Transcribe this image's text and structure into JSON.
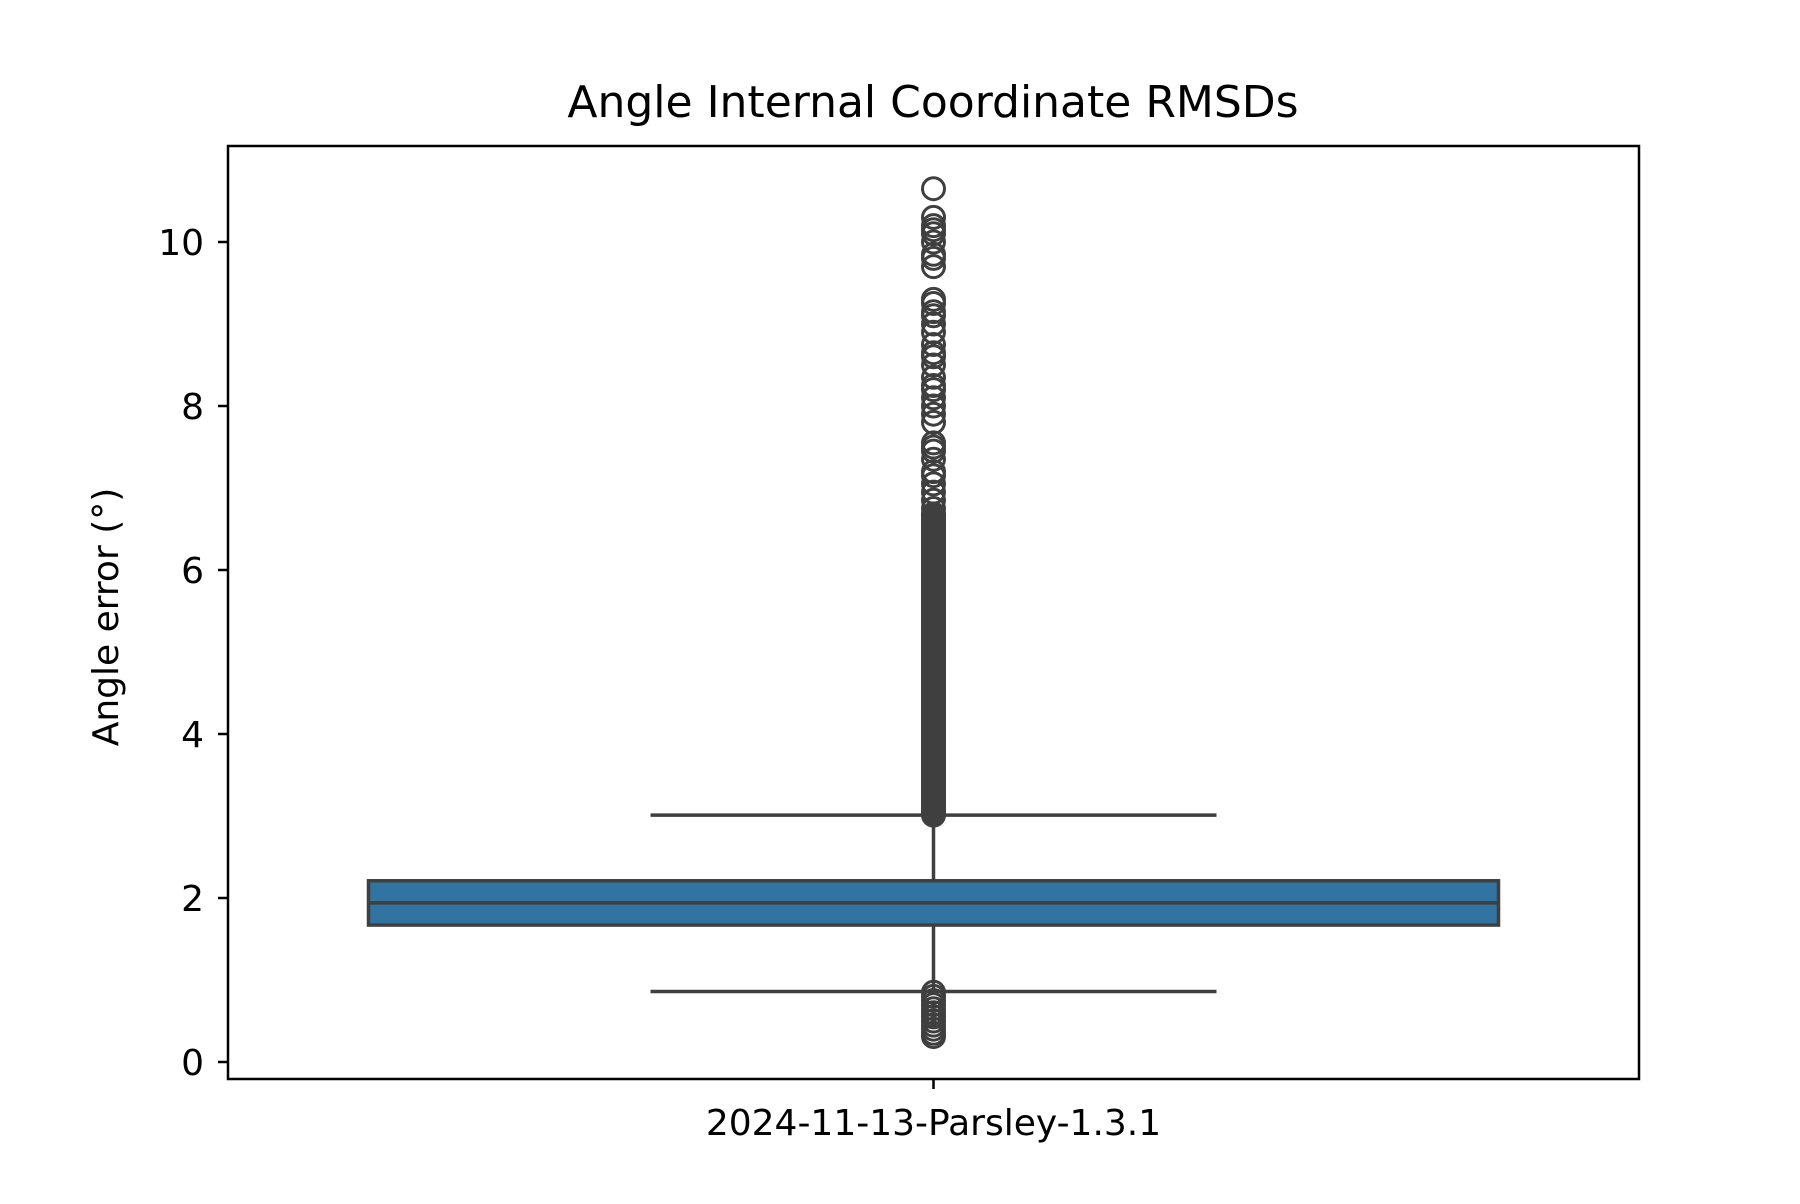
{
  "chart_data": {
    "type": "box",
    "title": "Angle Internal Coordinate RMSDs",
    "xlabel": "",
    "ylabel": "Angle error (°)",
    "categories": [
      "2024-11-13-Parsley-1.3.1"
    ],
    "ylim": [
      -0.2,
      11.2
    ],
    "yticks": [
      0,
      2,
      4,
      6,
      8,
      10
    ],
    "grid": false,
    "legend": "none",
    "colors": {
      "box_fill": "#3274a1",
      "box_line": "#3f3f3f",
      "axis": "#000000"
    },
    "boxes": [
      {
        "category": "2024-11-13-Parsley-1.3.1",
        "q1": 1.67,
        "median": 1.94,
        "q3": 2.21,
        "whisker_low": 0.86,
        "whisker_high": 3.01,
        "outliers_high_dense_range": [
          3.01,
          6.7
        ],
        "outliers_high": [
          6.75,
          6.85,
          6.95,
          7.05,
          7.15,
          7.2,
          7.35,
          7.45,
          7.5,
          7.55,
          7.8,
          7.9,
          8.0,
          8.1,
          8.2,
          8.25,
          8.35,
          8.5,
          8.6,
          8.65,
          8.75,
          8.9,
          9.0,
          9.1,
          9.15,
          9.25,
          9.3,
          9.7,
          9.8,
          9.85,
          10.0,
          10.1,
          10.15,
          10.2,
          10.3,
          10.65
        ],
        "outliers_low": [
          0.31,
          0.35,
          0.4,
          0.45,
          0.5,
          0.55,
          0.6,
          0.65,
          0.7,
          0.75,
          0.8,
          0.85
        ]
      }
    ]
  }
}
